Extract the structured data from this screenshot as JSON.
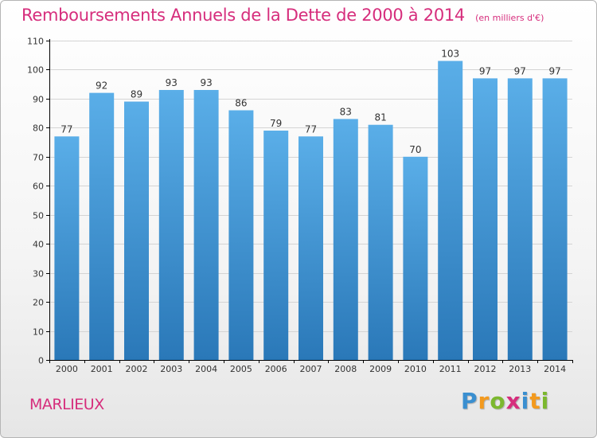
{
  "title": "Remboursements Annuels de la Dette de 2000 à 2014",
  "subtitle": "(en milliers d'€)",
  "commune": "MARLIEUX",
  "brand": {
    "letters": [
      "P",
      "r",
      "o",
      "x",
      "i",
      "t",
      "i"
    ],
    "colors": [
      "#3a8fd0",
      "#f39a1e",
      "#7cb82f",
      "#d62d7c",
      "#3a8fd0",
      "#f39a1e",
      "#7cb82f"
    ]
  },
  "colors": {
    "accent": "#d62d7c",
    "bar_top": "#5aaee8",
    "bar_bottom": "#2a78b8",
    "grid": "#d4d4d4",
    "axis": "#000000"
  },
  "chart_data": {
    "type": "bar",
    "categories": [
      "2000",
      "2001",
      "2002",
      "2003",
      "2004",
      "2005",
      "2006",
      "2007",
      "2008",
      "2009",
      "2010",
      "2011",
      "2012",
      "2013",
      "2014"
    ],
    "values": [
      77,
      92,
      89,
      93,
      93,
      86,
      79,
      77,
      83,
      81,
      70,
      103,
      97,
      97,
      97
    ],
    "ylim": [
      0,
      110
    ],
    "yticks": [
      0,
      10,
      20,
      30,
      40,
      50,
      60,
      70,
      80,
      90,
      100,
      110
    ],
    "grid": true,
    "xlabel": "",
    "ylabel": ""
  }
}
